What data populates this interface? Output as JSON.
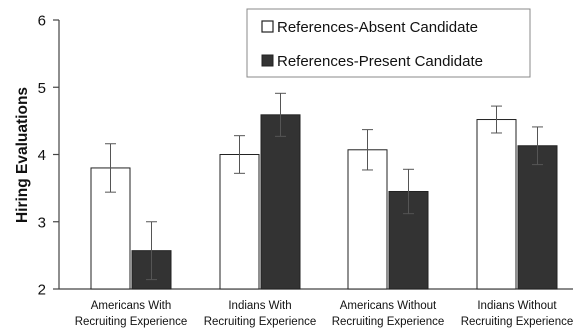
{
  "chart_data": {
    "type": "bar",
    "title": "",
    "xlabel": "",
    "ylabel": "Hiring Evaluations",
    "ylim": [
      2,
      6
    ],
    "yticks": [
      "2",
      "3",
      "4",
      "5",
      "6"
    ],
    "grid": false,
    "legend_position": "top-right",
    "categories": [
      [
        "Americans With",
        "Recruiting Experience"
      ],
      [
        "Indians With",
        "Recruiting Experience"
      ],
      [
        "Americans Without",
        "Recruiting Experience"
      ],
      [
        "Indians Without",
        "Recruiting Experience"
      ]
    ],
    "series": [
      {
        "name": "References-Absent Candidate",
        "fill": "#ffffff",
        "values": [
          3.8,
          4.0,
          4.07,
          4.52
        ],
        "error": [
          0.36,
          0.28,
          0.3,
          0.2
        ]
      },
      {
        "name": "References-Present Candidate",
        "fill": "#333333",
        "values": [
          2.57,
          4.59,
          3.45,
          4.13
        ],
        "error": [
          0.43,
          0.32,
          0.33,
          0.28
        ]
      }
    ]
  }
}
